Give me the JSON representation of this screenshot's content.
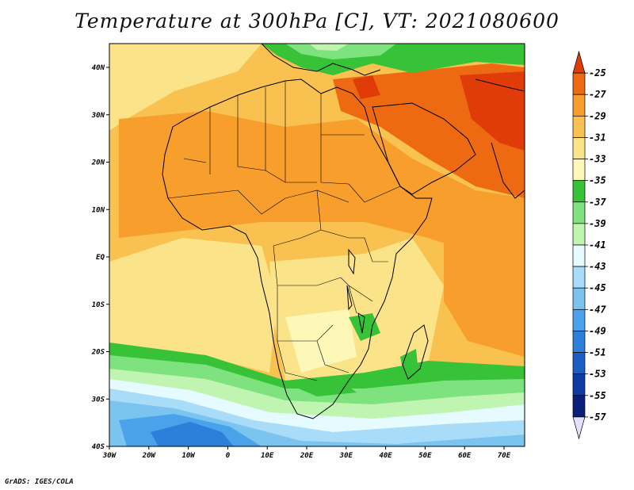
{
  "title": "Temperature at 300hPa [C], VT: 2021080600",
  "credit": "GrADS: IGES/COLA",
  "map": {
    "lat_labels": [
      "40N",
      "30N",
      "20N",
      "10N",
      "EQ",
      "10S",
      "20S",
      "30S",
      "40S"
    ],
    "lon_labels": [
      "30W",
      "20W",
      "10W",
      "0",
      "10E",
      "20E",
      "30E",
      "40E",
      "50E",
      "60E",
      "70E"
    ]
  },
  "colorbar": {
    "levels": [
      "-25",
      "-27",
      "-29",
      "-31",
      "-33",
      "-35",
      "-37",
      "-39",
      "-41",
      "-43",
      "-45",
      "-47",
      "-49",
      "-51",
      "-53",
      "-55",
      "-57"
    ],
    "colors": [
      "#e03c0a",
      "#ee6a12",
      "#f79e2c",
      "#f8c150",
      "#fbe38a",
      "#fdf7b8",
      "#37c237",
      "#7ee27e",
      "#bff5b0",
      "#e6fbff",
      "#a9dcf8",
      "#7cc4f0",
      "#4aa3ea",
      "#2e7fd9",
      "#1c5fc4",
      "#0e3ba6",
      "#0a1f7a",
      "#e6e0ff"
    ]
  }
}
